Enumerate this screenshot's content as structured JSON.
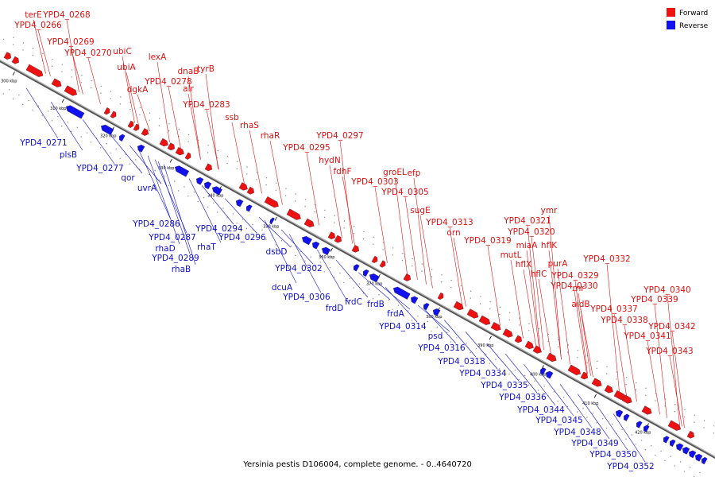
{
  "caption": "Yersinia pestis D106004, complete genome. - 0..4640720",
  "legend": [
    {
      "label": "Forward",
      "color": "#ee1111"
    },
    {
      "label": "Reverse",
      "color": "#1111ee"
    }
  ],
  "scale_ticks": [
    "300 kbp",
    "310 kbp",
    "320 kbp",
    "330 kbp",
    "340 kbp",
    "350 kbp",
    "360 kbp",
    "370 kbp",
    "380 kbp",
    "390 kbp",
    "400 kbp",
    "410 kbp",
    "420 kbp"
  ],
  "forward_genes": [
    "terE",
    "YPD4_0268",
    "YPD4_0266",
    "YPD4_0269",
    "YPD4_0270",
    "ubiC",
    "ubiA",
    "lexA",
    "dgkA",
    "YPD4_0278",
    "dnaB",
    "tyrB",
    "alr",
    "YPD4_0283",
    "ssb",
    "rhaS",
    "rhaR",
    "YPD4_0297",
    "YPD4_0295",
    "hydN",
    "fdhF",
    "groEL",
    "efp",
    "YPD4_0303",
    "YPD4_0305",
    "sugE",
    "YPD4_0313",
    "orn",
    "ymr",
    "YPD4_0321",
    "YPD4_0320",
    "YPD4_0319",
    "hflK",
    "miaA",
    "mutL",
    "hflX",
    "purA",
    "hflC",
    "YPD4_0329",
    "rnr",
    "YPD4_0332",
    "YPD4_0330",
    "aidB",
    "YPD4_0337",
    "YPD4_0340",
    "YPD4_0339",
    "YPD4_0338",
    "YPD4_0342",
    "YPD4_0341",
    "YPD4_0343"
  ],
  "reverse_genes": [
    "YPD4_0271",
    "plsB",
    "YPD4_0277",
    "qor",
    "uvrA",
    "YPD4_0286",
    "YPD4_0287",
    "rhaD",
    "YPD4_0294",
    "YPD4_0289",
    "rhaT",
    "YPD4_0296",
    "rhaB",
    "dsbD",
    "YPD4_0302",
    "dcuA",
    "YPD4_0306",
    "frdC",
    "frdD",
    "frdB",
    "frdA",
    "YPD4_0314",
    "psd",
    "YPD4_0316",
    "YPD4_0318",
    "YPD4_0334",
    "YPD4_0335",
    "YPD4_0336",
    "YPD4_0344",
    "YPD4_0345",
    "YPD4_0348",
    "YPD4_0349",
    "YPD4_0350",
    "YPD4_0352"
  ]
}
